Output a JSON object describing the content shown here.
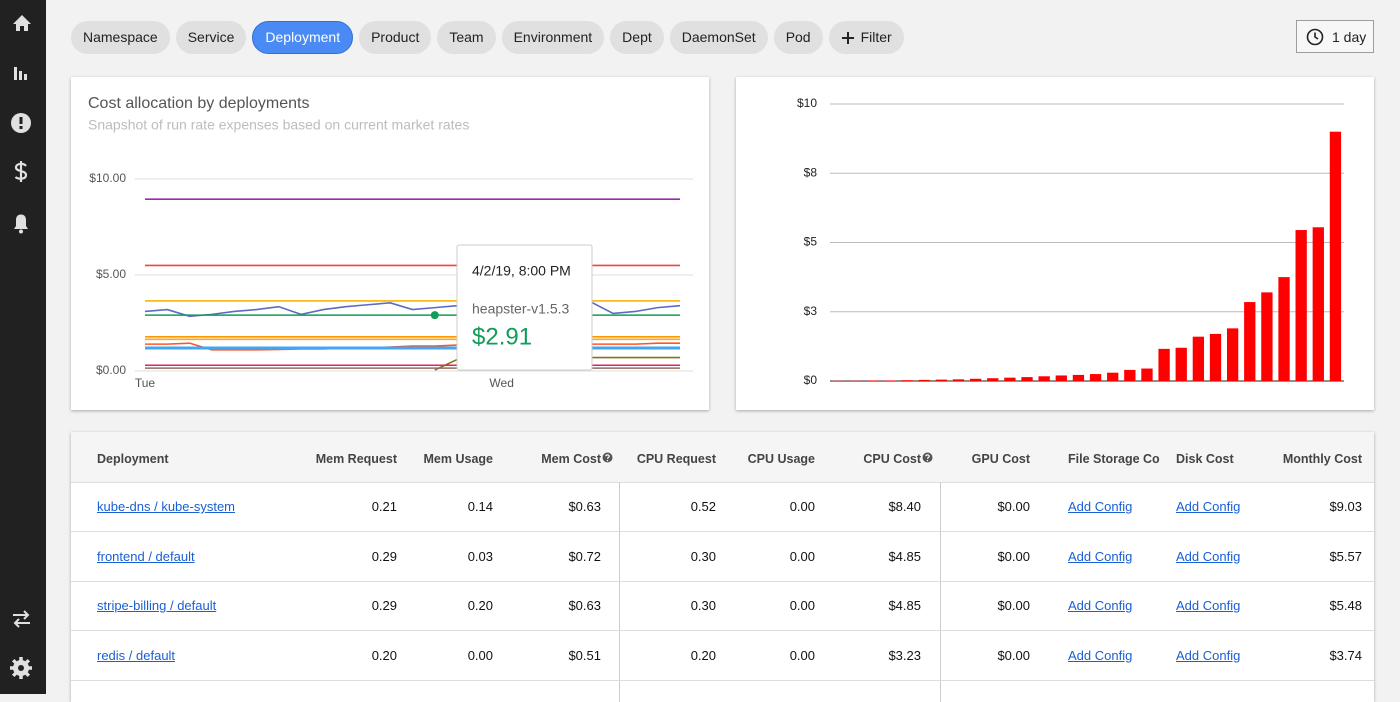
{
  "filters": [
    "Namespace",
    "Service",
    "Deployment",
    "Product",
    "Team",
    "Environment",
    "Dept",
    "DaemonSet",
    "Pod"
  ],
  "selected_filter": "Deployment",
  "add_filter": "Filter",
  "time_range": "1 day",
  "chart_data": [
    {
      "type": "line",
      "title": "Cost allocation by deployments",
      "subtitle": "Snapshot of run rate expenses based on current market rates",
      "categories": [
        "Tue",
        null,
        null,
        null,
        null,
        null,
        null,
        null,
        null,
        null,
        null,
        null,
        null,
        null,
        null,
        null,
        "Wed",
        null,
        null,
        null,
        null,
        null,
        null,
        null,
        null
      ],
      "ylim": [
        0,
        10
      ],
      "yticks": [
        {
          "value": 10,
          "label": "$10.00"
        },
        {
          "value": 5,
          "label": "$5.00"
        },
        {
          "value": 0,
          "label": "$0.00"
        }
      ],
      "grid": true,
      "tooltip": "4/2/19, 8:00 PM",
      "series": [
        {
          "color": "#9c27b0",
          "values": [
            8.95,
            8.95,
            8.95,
            8.95,
            8.95,
            8.95,
            8.95,
            8.95,
            8.95,
            8.95,
            8.95,
            8.95,
            8.95,
            8.95,
            8.95,
            8.95,
            8.95,
            8.95,
            8.95,
            8.95,
            8.95,
            8.95,
            8.95,
            8.95,
            8.95
          ]
        },
        {
          "color": "#f44336",
          "values": [
            5.5,
            5.5,
            5.5,
            5.5,
            5.5,
            5.5,
            5.5,
            5.5,
            5.5,
            5.5,
            5.5,
            5.5,
            5.5,
            5.5,
            5.5,
            5.5,
            5.5,
            5.5,
            5.5,
            5.5,
            5.5,
            5.5,
            5.5,
            5.5,
            5.5
          ]
        },
        {
          "color": "#ffb300",
          "values": [
            3.65,
            3.65,
            3.65,
            3.65,
            3.65,
            3.65,
            3.65,
            3.65,
            3.65,
            3.65,
            3.65,
            3.65,
            3.65,
            3.65,
            3.65,
            3.65,
            3.65,
            3.65,
            3.65,
            3.65,
            3.65,
            3.65,
            3.65,
            3.65,
            3.65
          ]
        },
        {
          "color": "#5c6bc0",
          "values": [
            3.1,
            3.2,
            2.85,
            2.95,
            3.1,
            3.2,
            3.35,
            2.95,
            3.2,
            3.35,
            3.45,
            3.55,
            3.2,
            3.3,
            3.4,
            3.25,
            3.45,
            3.6,
            3.25,
            3.5,
            3.6,
            3.0,
            3.1,
            3.3,
            3.4
          ]
        },
        {
          "name": "heapster-v1.5.3",
          "color": "#0f9d58",
          "values": [
            2.91,
            2.91,
            2.91,
            2.91,
            2.91,
            2.91,
            2.91,
            2.91,
            2.91,
            2.91,
            2.91,
            2.91,
            2.91,
            2.91,
            2.91,
            2.91,
            2.91,
            2.91,
            2.91,
            2.91,
            2.91,
            2.91,
            2.91,
            2.91,
            2.91
          ],
          "value_labels": [
            null,
            null,
            null,
            null,
            null,
            null,
            null,
            null,
            null,
            null,
            null,
            null,
            null,
            "$2.91",
            null,
            null,
            null,
            null,
            null,
            null,
            null,
            null,
            null,
            null,
            null
          ]
        },
        {
          "color": "#ff9800",
          "values": [
            1.78,
            1.78,
            1.78,
            1.78,
            1.78,
            1.78,
            1.78,
            1.78,
            1.78,
            1.78,
            1.78,
            1.78,
            1.78,
            1.78,
            1.78,
            1.78,
            1.78,
            1.78,
            1.78,
            1.78,
            1.78,
            1.78,
            1.78,
            1.78,
            1.78
          ]
        },
        {
          "color": "#ffa726",
          "values": [
            1.65,
            1.65,
            1.65,
            1.65,
            1.65,
            1.65,
            1.65,
            1.65,
            1.65,
            1.65,
            1.65,
            1.65,
            1.65,
            1.65,
            1.65,
            1.65,
            1.65,
            1.65,
            1.65,
            1.65,
            1.65,
            1.65,
            1.65,
            1.65,
            1.65
          ]
        },
        {
          "color": "#ff5722",
          "values": [
            1.4,
            1.4,
            1.45,
            1.1,
            1.1,
            1.1,
            1.12,
            1.15,
            1.15,
            1.2,
            1.2,
            1.25,
            1.3,
            1.3,
            1.35,
            1.35,
            1.35,
            1.4,
            1.4,
            1.4,
            1.4,
            1.4,
            1.4,
            1.45,
            1.45
          ]
        },
        {
          "color": "#42a5f5",
          "values": [
            1.2,
            1.2,
            1.2,
            1.2,
            1.2,
            1.2,
            1.2,
            1.2,
            1.2,
            1.2,
            1.2,
            1.2,
            1.2,
            1.2,
            1.2,
            1.2,
            1.2,
            1.2,
            1.2,
            1.2,
            1.2,
            1.2,
            1.2,
            1.2,
            1.2
          ]
        },
        {
          "color": "#827717",
          "values": [
            null,
            null,
            null,
            null,
            null,
            null,
            null,
            null,
            null,
            null,
            null,
            null,
            null,
            0.05,
            0.6,
            0.65,
            0.65,
            0.7,
            0.7,
            0.7,
            0.7,
            0.7,
            0.7,
            0.7,
            0.7
          ]
        },
        {
          "color": "#e91e63",
          "values": [
            0.3,
            0.3,
            0.3,
            0.3,
            0.3,
            0.3,
            0.3,
            0.3,
            0.3,
            0.3,
            0.3,
            0.3,
            0.3,
            0.3,
            0.3,
            0.3,
            0.3,
            0.3,
            0.3,
            0.3,
            0.3,
            0.3,
            0.3,
            0.3,
            0.3
          ]
        },
        {
          "color": "#8d6e63",
          "values": [
            0.15,
            0.15,
            0.15,
            0.15,
            0.15,
            0.15,
            0.15,
            0.15,
            0.15,
            0.15,
            0.15,
            0.15,
            0.15,
            0.15,
            0.15,
            0.15,
            0.15,
            0.15,
            0.15,
            0.15,
            0.15,
            0.15,
            0.15,
            0.15,
            0.15
          ]
        }
      ]
    },
    {
      "type": "bar",
      "color": "#ff0000",
      "ylim": [
        0,
        10
      ],
      "yticks": [
        {
          "value": 10,
          "label": "$10"
        },
        {
          "value": 7.5,
          "label": "$8"
        },
        {
          "value": 5,
          "label": "$5"
        },
        {
          "value": 2.5,
          "label": "$3"
        },
        {
          "value": 0,
          "label": "$0"
        }
      ],
      "grid": true,
      "values": [
        0.01,
        0.01,
        0.02,
        0.02,
        0.03,
        0.04,
        0.05,
        0.06,
        0.08,
        0.1,
        0.12,
        0.14,
        0.17,
        0.2,
        0.22,
        0.25,
        0.3,
        0.4,
        0.45,
        1.16,
        1.2,
        1.6,
        1.7,
        1.9,
        2.85,
        3.2,
        3.75,
        5.45,
        5.55,
        9.0
      ]
    }
  ],
  "table": {
    "headers": [
      "Deployment",
      "Mem Request",
      "Mem Usage",
      "Mem Cost",
      "CPU Request",
      "CPU Usage",
      "CPU Cost",
      "GPU Cost",
      "File Storage Co",
      "Disk Cost",
      "Monthly Cost"
    ],
    "rows": [
      [
        "kube-dns / kube-system",
        "0.21",
        "0.14",
        "$0.63",
        "0.52",
        "0.00",
        "$8.40",
        "$0.00",
        "Add Config",
        "Add Config",
        "$9.03"
      ],
      [
        "frontend / default",
        "0.29",
        "0.03",
        "$0.72",
        "0.30",
        "0.00",
        "$4.85",
        "$0.00",
        "Add Config",
        "Add Config",
        "$5.57"
      ],
      [
        "stripe-billing / default",
        "0.29",
        "0.20",
        "$0.63",
        "0.30",
        "0.00",
        "$4.85",
        "$0.00",
        "Add Config",
        "Add Config",
        "$5.48"
      ],
      [
        "redis / default",
        "0.20",
        "0.00",
        "$0.51",
        "0.20",
        "0.00",
        "$3.23",
        "$0.00",
        "Add Config",
        "Add Config",
        "$3.74"
      ]
    ]
  }
}
